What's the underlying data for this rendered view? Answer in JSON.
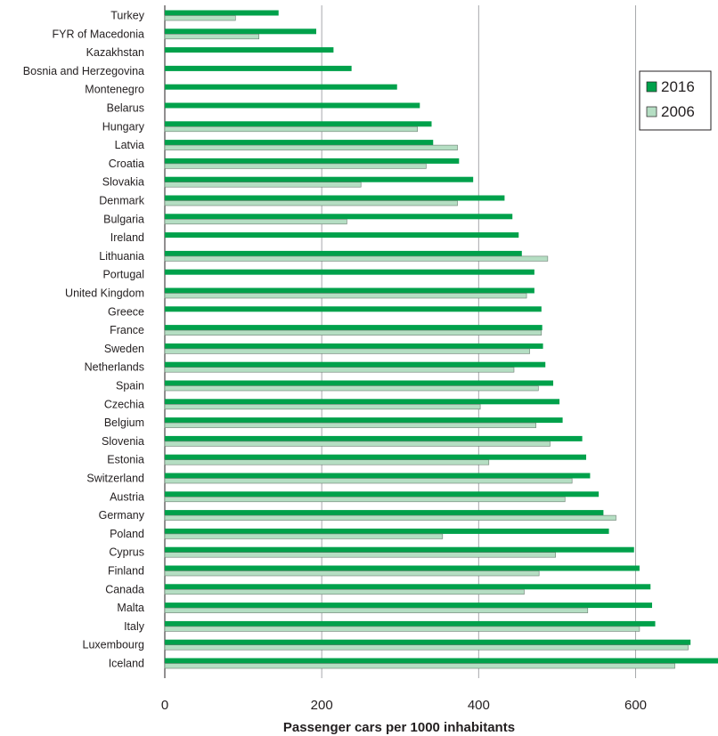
{
  "chart_data": {
    "type": "bar",
    "orientation": "horizontal",
    "xlabel": "Passenger cars per 1000 inhabitants",
    "ylabel": "",
    "title": "",
    "xlim": [
      0,
      705
    ],
    "xticks": [
      0,
      200,
      400,
      600
    ],
    "grid": "vertical",
    "legend": "right",
    "categories": [
      "Turkey",
      "FYR of Macedonia",
      "Kazakhstan",
      "Bosnia and Herzegovina",
      "Montenegro",
      "Belarus",
      "Hungary",
      "Latvia",
      "Croatia",
      "Slovakia",
      "Denmark",
      "Bulgaria",
      "Ireland",
      "Lithuania",
      "Portugal",
      "United Kingdom",
      "Greece",
      "France",
      "Sweden",
      "Netherlands",
      "Spain",
      "Czechia",
      "Belgium",
      "Slovenia",
      "Estonia",
      "Switzerland",
      "Austria",
      "Germany",
      "Poland",
      "Cyprus",
      "Finland",
      "Canada",
      "Malta",
      "Italy",
      "Luxembourg",
      "Iceland"
    ],
    "series": [
      {
        "name": "2016",
        "color": "#00a14b",
        "values": [
          145,
          193,
          215,
          238,
          296,
          325,
          340,
          342,
          375,
          393,
          433,
          443,
          451,
          455,
          471,
          471,
          480,
          481,
          482,
          485,
          495,
          503,
          507,
          532,
          537,
          542,
          553,
          559,
          566,
          598,
          605,
          619,
          621,
          625,
          670,
          705
        ]
      },
      {
        "name": "2006",
        "color": "#b5dec3",
        "values": [
          90,
          120,
          null,
          null,
          null,
          null,
          322,
          373,
          333,
          250,
          373,
          232,
          null,
          488,
          null,
          461,
          null,
          480,
          465,
          445,
          476,
          402,
          473,
          491,
          413,
          519,
          510,
          575,
          354,
          498,
          477,
          458,
          539,
          605,
          667,
          650
        ]
      }
    ]
  }
}
